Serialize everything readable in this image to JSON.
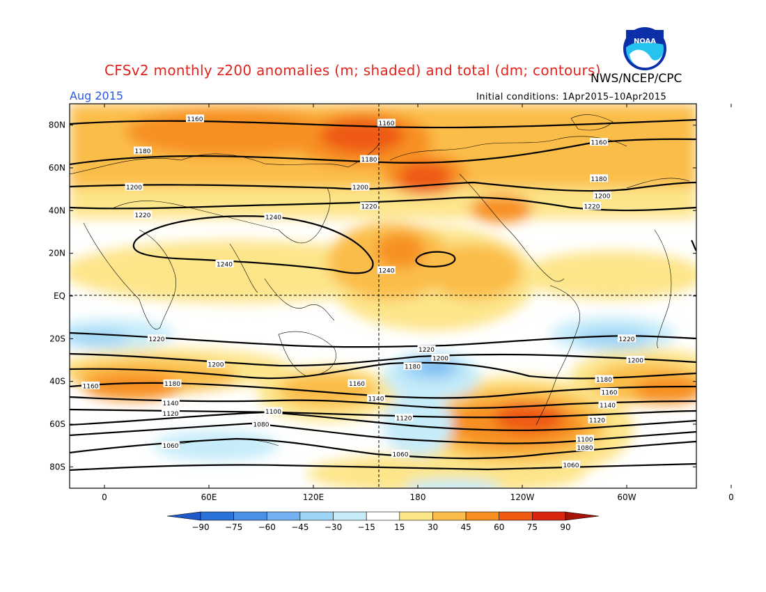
{
  "header": {
    "title": "CFSv2 monthly z200 anomalies (m; shaded) and total (dm; contours)",
    "agency": "NWS/NCEP/CPC",
    "month": "Aug 2015",
    "initial_conditions": "Initial conditions: 1Apr2015–10Apr2015",
    "logo_text": "NOAA"
  },
  "map": {
    "projection": "cylindrical equidistant",
    "lat_labels": [
      "80N",
      "60N",
      "40N",
      "20N",
      "EQ",
      "20S",
      "40S",
      "60S",
      "80S"
    ],
    "lon_labels": [
      "0",
      "60E",
      "120E",
      "180",
      "120W",
      "60W",
      "0"
    ],
    "reference_lines": [
      "EQ",
      "180"
    ],
    "contour_labels": [
      {
        "text": "1160",
        "lon": 52,
        "lat": 83
      },
      {
        "text": "1160",
        "lon": 162,
        "lat": 81
      },
      {
        "text": "1160",
        "lon": 284,
        "lat": 72
      },
      {
        "text": "1180",
        "lon": 22,
        "lat": 68
      },
      {
        "text": "1180",
        "lon": 152,
        "lat": 64
      },
      {
        "text": "1180",
        "lon": 284,
        "lat": 55
      },
      {
        "text": "1200",
        "lon": 17,
        "lat": 51
      },
      {
        "text": "1200",
        "lon": 147,
        "lat": 51
      },
      {
        "text": "1200",
        "lon": 286,
        "lat": 47
      },
      {
        "text": "1220",
        "lon": 22,
        "lat": 38
      },
      {
        "text": "1220",
        "lon": 152,
        "lat": 42
      },
      {
        "text": "1220",
        "lon": 280,
        "lat": 42
      },
      {
        "text": "1240",
        "lon": 97,
        "lat": 37
      },
      {
        "text": "1240",
        "lon": 69,
        "lat": 15
      },
      {
        "text": "1240",
        "lon": 162,
        "lat": 12
      },
      {
        "text": "1220",
        "lon": 30,
        "lat": -20
      },
      {
        "text": "1220",
        "lon": 185,
        "lat": -25
      },
      {
        "text": "1220",
        "lon": 300,
        "lat": -20
      },
      {
        "text": "1200",
        "lon": 64,
        "lat": -32
      },
      {
        "text": "1200",
        "lon": 193,
        "lat": -29
      },
      {
        "text": "1200",
        "lon": 305,
        "lat": -30
      },
      {
        "text": "1180",
        "lon": 39,
        "lat": -41
      },
      {
        "text": "1180",
        "lon": 177,
        "lat": -33
      },
      {
        "text": "1180",
        "lon": 287,
        "lat": -39
      },
      {
        "text": "1160",
        "lon": -8,
        "lat": -42
      },
      {
        "text": "1160",
        "lon": 145,
        "lat": -41
      },
      {
        "text": "1160",
        "lon": 290,
        "lat": -45
      },
      {
        "text": "1140",
        "lon": 38,
        "lat": -50
      },
      {
        "text": "1140",
        "lon": 156,
        "lat": -48
      },
      {
        "text": "1140",
        "lon": 289,
        "lat": -51
      },
      {
        "text": "1120",
        "lon": 38,
        "lat": -55
      },
      {
        "text": "1120",
        "lon": 172,
        "lat": -57
      },
      {
        "text": "1120",
        "lon": 283,
        "lat": -58
      },
      {
        "text": "1100",
        "lon": 97,
        "lat": -54
      },
      {
        "text": "1100",
        "lon": 276,
        "lat": -67
      },
      {
        "text": "1080",
        "lon": 90,
        "lat": -60
      },
      {
        "text": "1080",
        "lon": 276,
        "lat": -71
      },
      {
        "text": "1060",
        "lon": 38,
        "lat": -70
      },
      {
        "text": "1060",
        "lon": 170,
        "lat": -74
      },
      {
        "text": "1060",
        "lon": 268,
        "lat": -79
      }
    ]
  },
  "colorbar": {
    "labels": [
      "-90",
      "-75",
      "-60",
      "-45",
      "-30",
      "-15",
      "15",
      "30",
      "45",
      "60",
      "75",
      "90"
    ],
    "colors": [
      "#1f58c8",
      "#2b72d9",
      "#4a90e6",
      "#72b2f0",
      "#9ed4f6",
      "#c6ecf9",
      "#ffffff",
      "#fde58a",
      "#fbbd48",
      "#f79020",
      "#ee5a12",
      "#d8260f",
      "#a71208"
    ]
  }
}
